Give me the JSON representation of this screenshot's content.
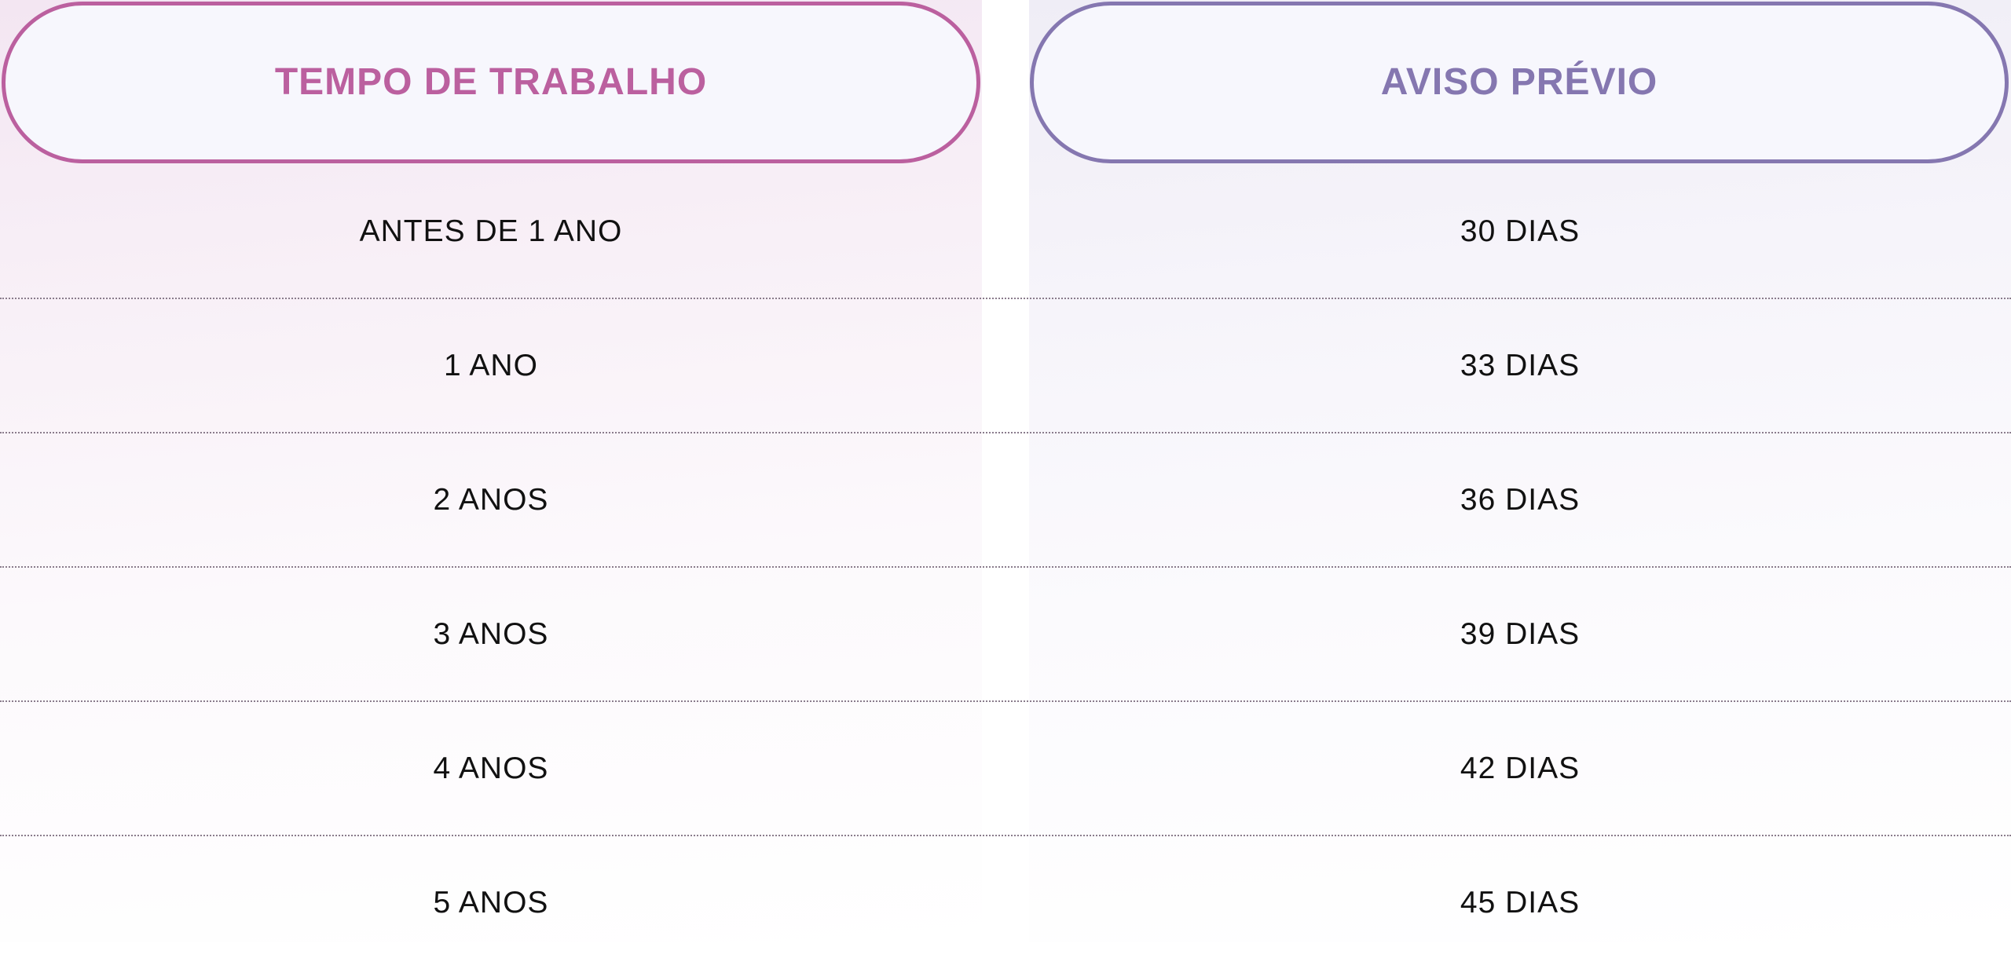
{
  "colors": {
    "left_accent": "#bb609f",
    "right_accent": "#8577b0",
    "text": "#111111",
    "divider": "#8a7c8c"
  },
  "header": {
    "left_title": "TEMPO DE TRABALHO",
    "right_title": "AVISO PRÉVIO"
  },
  "rows": [
    {
      "tempo": "ANTES DE 1 ANO",
      "aviso": "30 DIAS"
    },
    {
      "tempo": "1 ANO",
      "aviso": "33 DIAS"
    },
    {
      "tempo": "2 ANOS",
      "aviso": "36 DIAS"
    },
    {
      "tempo": "3 ANOS",
      "aviso": "39 DIAS"
    },
    {
      "tempo": "4 ANOS",
      "aviso": "42 DIAS"
    },
    {
      "tempo": "5 ANOS",
      "aviso": "45 DIAS"
    }
  ]
}
